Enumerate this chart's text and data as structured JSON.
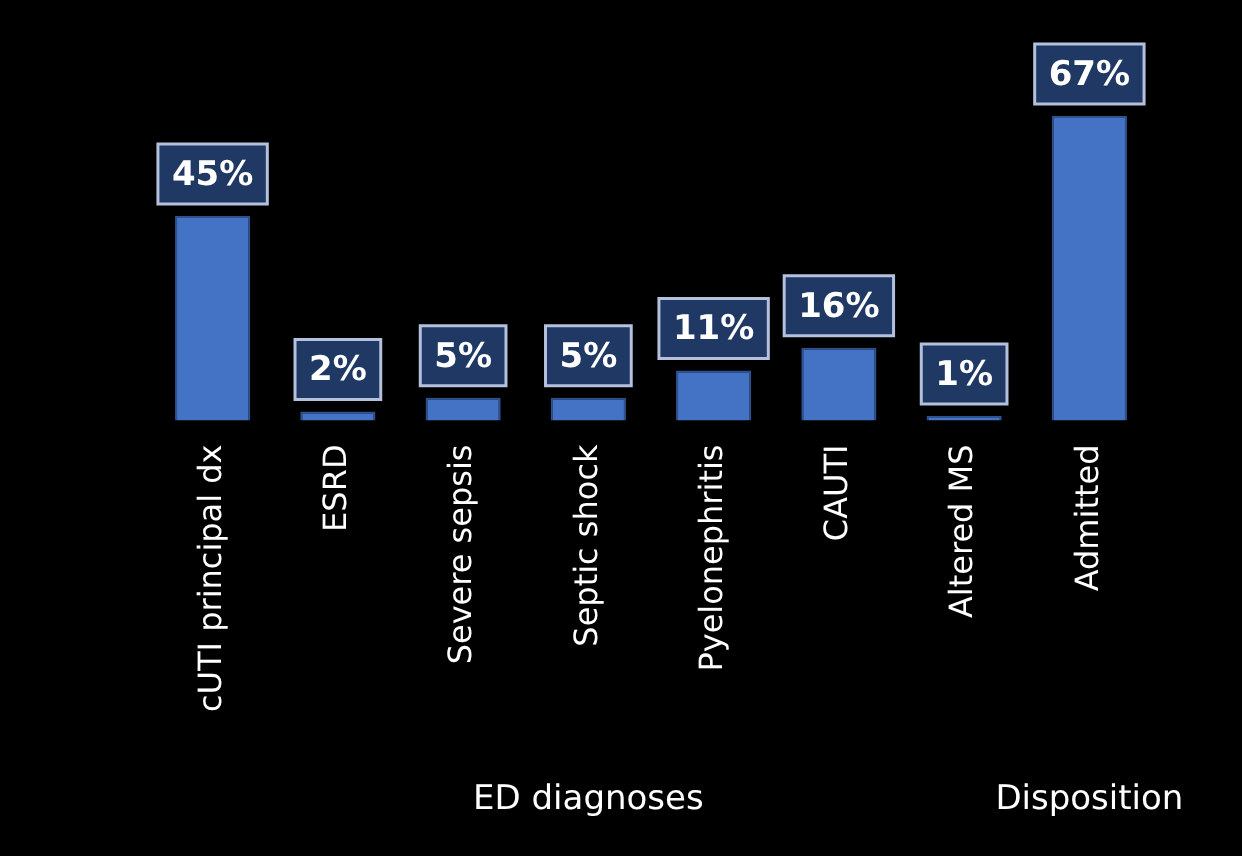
{
  "chart_data": {
    "type": "bar",
    "categories": [
      "cUTI principal dx",
      "ESRD",
      "Severe sepsis",
      "Septic shock",
      "Pyelonephritis",
      "CAUTI",
      "Altered MS",
      "Admitted"
    ],
    "values": [
      45,
      2,
      5,
      5,
      11,
      16,
      1,
      67
    ],
    "value_labels": [
      "45%",
      "2%",
      "5%",
      "5%",
      "11%",
      "16%",
      "1%",
      "67%"
    ],
    "color": "#4472c4",
    "annotations": [
      "ED diagnoses",
      "Disposition"
    ]
  }
}
